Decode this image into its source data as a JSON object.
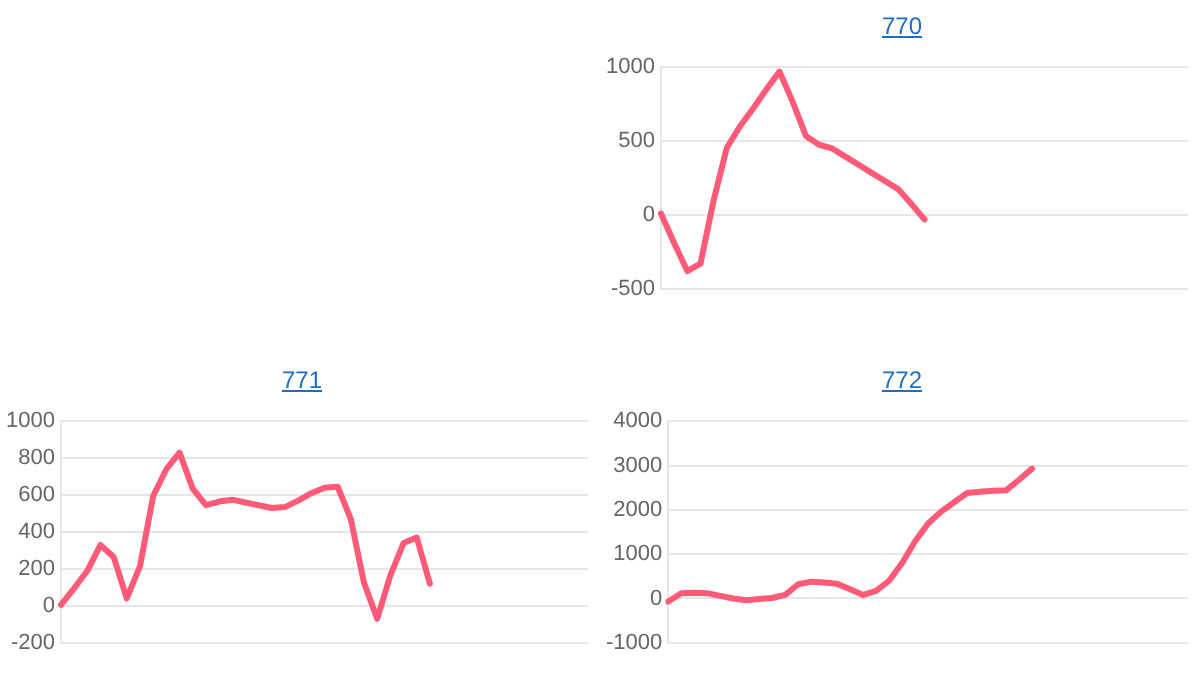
{
  "chart_data": [
    {
      "type": "line",
      "title": "770",
      "categories": [
        null,
        null,
        null,
        null,
        null,
        null,
        null,
        null,
        null,
        null,
        null,
        null,
        null,
        null,
        null,
        null,
        null,
        null,
        null,
        null,
        null,
        null,
        null,
        null,
        null,
        null,
        null,
        null,
        null,
        null,
        null,
        null,
        null,
        null,
        null,
        null,
        null,
        null,
        null,
        null,
        null
      ],
      "ylim": [
        -500,
        1000
      ],
      "yticks": [
        -500,
        0,
        500,
        1000
      ],
      "grid": "y",
      "tick_labels": "y",
      "marker": "none",
      "line_style": "solid",
      "series": [
        {
          "color": "#ff5a78",
          "values": [
            10,
            -190,
            -380,
            -330,
            100,
            455,
            600,
            720,
            850,
            970,
            765,
            535,
            475,
            450,
            395,
            340,
            285,
            230,
            175,
            75,
            -30,
            null,
            null,
            null,
            null,
            null,
            null,
            null,
            null,
            null,
            null,
            null,
            null,
            null,
            null,
            null,
            null,
            null,
            null,
            null,
            null
          ]
        }
      ]
    },
    {
      "type": "line",
      "title": "771",
      "categories": [
        null,
        null,
        null,
        null,
        null,
        null,
        null,
        null,
        null,
        null,
        null,
        null,
        null,
        null,
        null,
        null,
        null,
        null,
        null,
        null,
        null,
        null,
        null,
        null,
        null,
        null,
        null,
        null,
        null,
        null,
        null,
        null,
        null,
        null,
        null,
        null,
        null,
        null,
        null,
        null,
        null
      ],
      "ylim": [
        -200,
        1000
      ],
      "yticks": [
        -200,
        0,
        200,
        400,
        600,
        800,
        1000
      ],
      "grid": "y",
      "tick_labels": "y",
      "marker": "none",
      "line_style": "solid",
      "series": [
        {
          "color": "#ff5a78",
          "values": [
            5,
            95,
            190,
            330,
            265,
            40,
            215,
            595,
            740,
            830,
            635,
            545,
            565,
            575,
            560,
            545,
            530,
            535,
            570,
            610,
            640,
            645,
            470,
            125,
            -70,
            165,
            340,
            370,
            120,
            null,
            null,
            null,
            null,
            null,
            null,
            null,
            null,
            null,
            null,
            null,
            null
          ]
        }
      ]
    },
    {
      "type": "line",
      "title": "772",
      "categories": [
        null,
        null,
        null,
        null,
        null,
        null,
        null,
        null,
        null,
        null,
        null,
        null,
        null,
        null,
        null,
        null,
        null,
        null,
        null,
        null,
        null,
        null,
        null,
        null,
        null,
        null,
        null,
        null,
        null,
        null,
        null,
        null,
        null,
        null,
        null,
        null,
        null,
        null,
        null,
        null,
        null
      ],
      "ylim": [
        -1000,
        4000
      ],
      "yticks": [
        -1000,
        0,
        1000,
        2000,
        3000,
        4000
      ],
      "grid": "y",
      "tick_labels": "y",
      "marker": "none",
      "line_style": "solid",
      "series": [
        {
          "color": "#ff5a78",
          "values": [
            -70,
            120,
            130,
            120,
            60,
            0,
            -40,
            -10,
            10,
            80,
            320,
            380,
            360,
            330,
            210,
            80,
            170,
            400,
            800,
            1290,
            1690,
            1960,
            2170,
            2380,
            2410,
            2430,
            2440,
            2680,
            2930,
            null,
            null,
            null,
            null,
            null,
            null,
            null,
            null,
            null,
            null,
            null,
            null
          ]
        }
      ]
    }
  ]
}
